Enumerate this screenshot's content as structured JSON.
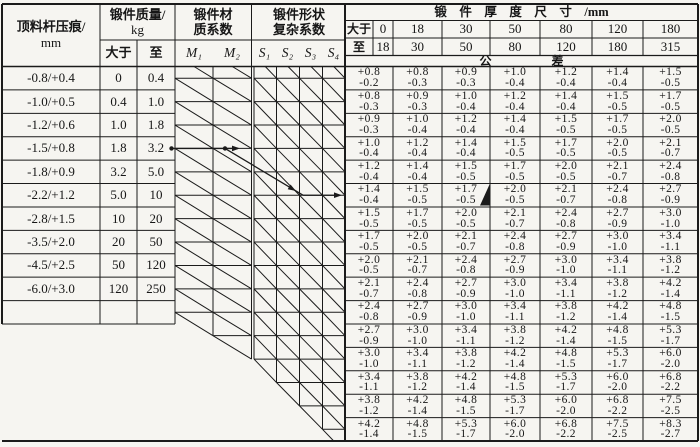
{
  "header": {
    "indentation": {
      "line1": "顶料杆压痕/",
      "line2": "mm"
    },
    "mass": {
      "line1": "锻件质量/",
      "line2": "kg",
      "over_label": "大于",
      "to_label": "至"
    },
    "material": {
      "line1": "锻件材",
      "line2": "质系数",
      "labels": [
        "M₁",
        "M₂"
      ]
    },
    "shape": {
      "line1": "锻件形状",
      "line2": "复杂系数",
      "labels": [
        "S₁",
        "S₂",
        "S₃",
        "S₄"
      ]
    },
    "thickness": {
      "title": "锻　件　厚　度　尺　寸　/mm",
      "over_label": "大于",
      "to_label": "至",
      "over_values": [
        "0",
        "18",
        "30",
        "50",
        "80",
        "120",
        "180"
      ],
      "to_values": [
        "18",
        "30",
        "50",
        "80",
        "120",
        "180",
        "315"
      ]
    },
    "tolerance_label": "公　　　　　差"
  },
  "left_rows": [
    {
      "indent": "-0.8/+0.4",
      "over": "0",
      "to": "0.4"
    },
    {
      "indent": "-1.0/+0.5",
      "over": "0.4",
      "to": "1.0"
    },
    {
      "indent": "-1.2/+0.6",
      "over": "1.0",
      "to": "1.8"
    },
    {
      "indent": "-1.5/+0.8",
      "over": "1.8",
      "to": "3.2"
    },
    {
      "indent": "-1.8/+0.9",
      "over": "3.2",
      "to": "5.0"
    },
    {
      "indent": "-2.2/+1.2",
      "over": "5.0",
      "to": "10"
    },
    {
      "indent": "-2.8/+1.5",
      "over": "10",
      "to": "20"
    },
    {
      "indent": "-3.5/+2.0",
      "over": "20",
      "to": "50"
    },
    {
      "indent": "-4.5/+2.5",
      "over": "50",
      "to": "120"
    },
    {
      "indent": "-6.0/+3.0",
      "over": "120",
      "to": "250"
    }
  ],
  "tolerance_rows": [
    [
      [
        "+0.8",
        "-0.2"
      ],
      [
        "+0.8",
        "-0.3"
      ],
      [
        "+0.9",
        "-0.3"
      ],
      [
        "+1.0",
        "-0.4"
      ],
      [
        "+1.2",
        "-0.4"
      ],
      [
        "+1.4",
        "-0.4"
      ],
      [
        "+1.5",
        "-0.5"
      ]
    ],
    [
      [
        "+0.8",
        "-0.3"
      ],
      [
        "+0.9",
        "-0.3"
      ],
      [
        "+1.0",
        "-0.4"
      ],
      [
        "+1.2",
        "-0.4"
      ],
      [
        "+1.4",
        "-0.4"
      ],
      [
        "+1.5",
        "-0.5"
      ],
      [
        "+1.7",
        "-0.5"
      ]
    ],
    [
      [
        "+0.9",
        "-0.3"
      ],
      [
        "+1.0",
        "-0.4"
      ],
      [
        "+1.2",
        "-0.4"
      ],
      [
        "+1.4",
        "-0.4"
      ],
      [
        "+1.5",
        "-0.5"
      ],
      [
        "+1.7",
        "-0.5"
      ],
      [
        "+2.0",
        "-0.5"
      ]
    ],
    [
      [
        "+1.0",
        "-0.4"
      ],
      [
        "+1.2",
        "-0.4"
      ],
      [
        "+1.4",
        "-0.4"
      ],
      [
        "+1.5",
        "-0.5"
      ],
      [
        "+1.7",
        "-0.5"
      ],
      [
        "+2.0",
        "-0.5"
      ],
      [
        "+2.1",
        "-0.7"
      ]
    ],
    [
      [
        "+1.2",
        "-0.4"
      ],
      [
        "+1.4",
        "-0.4"
      ],
      [
        "+1.5",
        "-0.5"
      ],
      [
        "+1.7",
        "-0.5"
      ],
      [
        "+2.0",
        "-0.5"
      ],
      [
        "+2.1",
        "-0.7"
      ],
      [
        "+2.4",
        "-0.8"
      ]
    ],
    [
      [
        "+1.4",
        "-0.4"
      ],
      [
        "+1.5",
        "-0.5"
      ],
      [
        "+1.7",
        "-0.5"
      ],
      [
        "+2.0",
        "-0.5"
      ],
      [
        "+2.1",
        "-0.7"
      ],
      [
        "+2.4",
        "-0.8"
      ],
      [
        "+2.7",
        "-0.9"
      ]
    ],
    [
      [
        "+1.5",
        "-0.5"
      ],
      [
        "+1.7",
        "-0.5"
      ],
      [
        "+2.0",
        "-0.5"
      ],
      [
        "+2.1",
        "-0.7"
      ],
      [
        "+2.4",
        "-0.8"
      ],
      [
        "+2.7",
        "-0.9"
      ],
      [
        "+3.0",
        "-1.0"
      ]
    ],
    [
      [
        "+1.7",
        "-0.5"
      ],
      [
        "+2.0",
        "-0.5"
      ],
      [
        "+2.1",
        "-0.7"
      ],
      [
        "+2.4",
        "-0.8"
      ],
      [
        "+2.7",
        "-0.9"
      ],
      [
        "+3.0",
        "-1.0"
      ],
      [
        "+3.4",
        "-1.1"
      ]
    ],
    [
      [
        "+2.0",
        "-0.5"
      ],
      [
        "+2.1",
        "-0.7"
      ],
      [
        "+2.4",
        "-0.8"
      ],
      [
        "+2.7",
        "-0.9"
      ],
      [
        "+3.0",
        "-1.0"
      ],
      [
        "+3.4",
        "-1.1"
      ],
      [
        "+3.8",
        "-1.2"
      ]
    ],
    [
      [
        "+2.1",
        "-0.7"
      ],
      [
        "+2.4",
        "-0.8"
      ],
      [
        "+2.7",
        "-0.9"
      ],
      [
        "+3.0",
        "-1.0"
      ],
      [
        "+3.4",
        "-1.1"
      ],
      [
        "+3.8",
        "-1.2"
      ],
      [
        "+4.2",
        "-1.4"
      ]
    ],
    [
      [
        "+2.4",
        "-0.8"
      ],
      [
        "+2.7",
        "-0.9"
      ],
      [
        "+3.0",
        "-1.0"
      ],
      [
        "+3.4",
        "-1.1"
      ],
      [
        "+3.8",
        "-1.2"
      ],
      [
        "+4.2",
        "-1.4"
      ],
      [
        "+4.8",
        "-1.5"
      ]
    ],
    [
      [
        "+2.7",
        "-0.9"
      ],
      [
        "+3.0",
        "-1.0"
      ],
      [
        "+3.4",
        "-1.1"
      ],
      [
        "+3.8",
        "-1.2"
      ],
      [
        "+4.2",
        "-1.4"
      ],
      [
        "+4.8",
        "-1.5"
      ],
      [
        "+5.3",
        "-1.7"
      ]
    ],
    [
      [
        "+3.0",
        "-1.0"
      ],
      [
        "+3.4",
        "-1.1"
      ],
      [
        "+3.8",
        "-1.2"
      ],
      [
        "+4.2",
        "-1.4"
      ],
      [
        "+4.8",
        "-1.5"
      ],
      [
        "+5.3",
        "-1.7"
      ],
      [
        "+6.0",
        "-2.0"
      ]
    ],
    [
      [
        "+3.4",
        "-1.1"
      ],
      [
        "+3.8",
        "-1.2"
      ],
      [
        "+4.2",
        "-1.4"
      ],
      [
        "+4.8",
        "-1.5"
      ],
      [
        "+5.3",
        "-1.7"
      ],
      [
        "+6.0",
        "-2.0"
      ],
      [
        "+6.8",
        "-2.2"
      ]
    ],
    [
      [
        "+3.8",
        "-1.2"
      ],
      [
        "+4.2",
        "-1.4"
      ],
      [
        "+4.8",
        "-1.5"
      ],
      [
        "+5.3",
        "-1.7"
      ],
      [
        "+6.0",
        "-2.0"
      ],
      [
        "+6.8",
        "-2.2"
      ],
      [
        "+7.5",
        "-2.5"
      ]
    ],
    [
      [
        "+4.2",
        "-1.4"
      ],
      [
        "+4.8",
        "-1.5"
      ],
      [
        "+5.3",
        "-1.7"
      ],
      [
        "+6.0",
        "-2.0"
      ],
      [
        "+6.8",
        "-2.2"
      ],
      [
        "+7.5",
        "-2.5"
      ],
      [
        "+8.3",
        "-2.7"
      ]
    ]
  ],
  "colors": {
    "line": "#1b1b1b",
    "paper": "#f6f5f1",
    "ink": "#161616"
  }
}
